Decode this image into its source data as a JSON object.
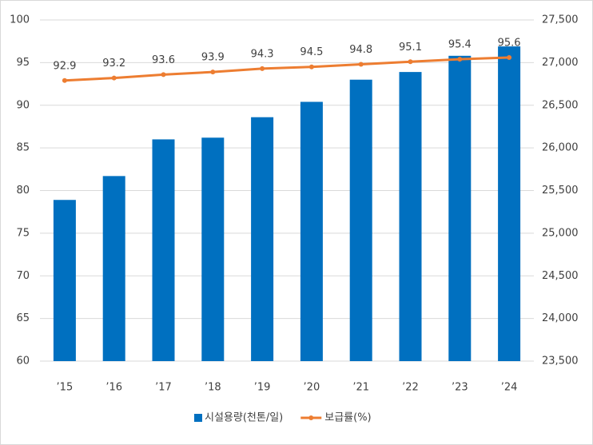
{
  "chart_data": {
    "type": "bar-line",
    "categories": [
      "’15",
      "’16",
      "’17",
      "’18",
      "’19",
      "’20",
      "’21",
      "’22",
      "’23",
      "’24"
    ],
    "series": [
      {
        "name": "시설용량(천톤/일)",
        "type": "bar",
        "axis": "y2",
        "color": "#0070c0",
        "values": [
          25390,
          25670,
          26100,
          26120,
          26360,
          26540,
          26800,
          26890,
          27080,
          27190
        ]
      },
      {
        "name": "보급률(%)",
        "type": "line",
        "axis": "y",
        "color": "#ed7d31",
        "values": [
          92.9,
          93.2,
          93.6,
          93.9,
          94.3,
          94.5,
          94.8,
          95.1,
          95.4,
          95.6
        ]
      }
    ],
    "ylim": [
      60,
      100
    ],
    "yticks": [
      60,
      65,
      70,
      75,
      80,
      85,
      90,
      95,
      100
    ],
    "y2lim": [
      23500,
      27500
    ],
    "y2ticks": [
      {
        "value": 23500,
        "label": "23,500"
      },
      {
        "value": 24000,
        "label": "24,000"
      },
      {
        "value": 24500,
        "label": "24,500"
      },
      {
        "value": 25000,
        "label": "25,000"
      },
      {
        "value": 25500,
        "label": "25,500"
      },
      {
        "value": 26000,
        "label": "26,000"
      },
      {
        "value": 26500,
        "label": "26,500"
      },
      {
        "value": 27000,
        "label": "27,000"
      },
      {
        "value": 27500,
        "label": "27,500"
      }
    ],
    "grid": true,
    "legend": "bottom"
  }
}
